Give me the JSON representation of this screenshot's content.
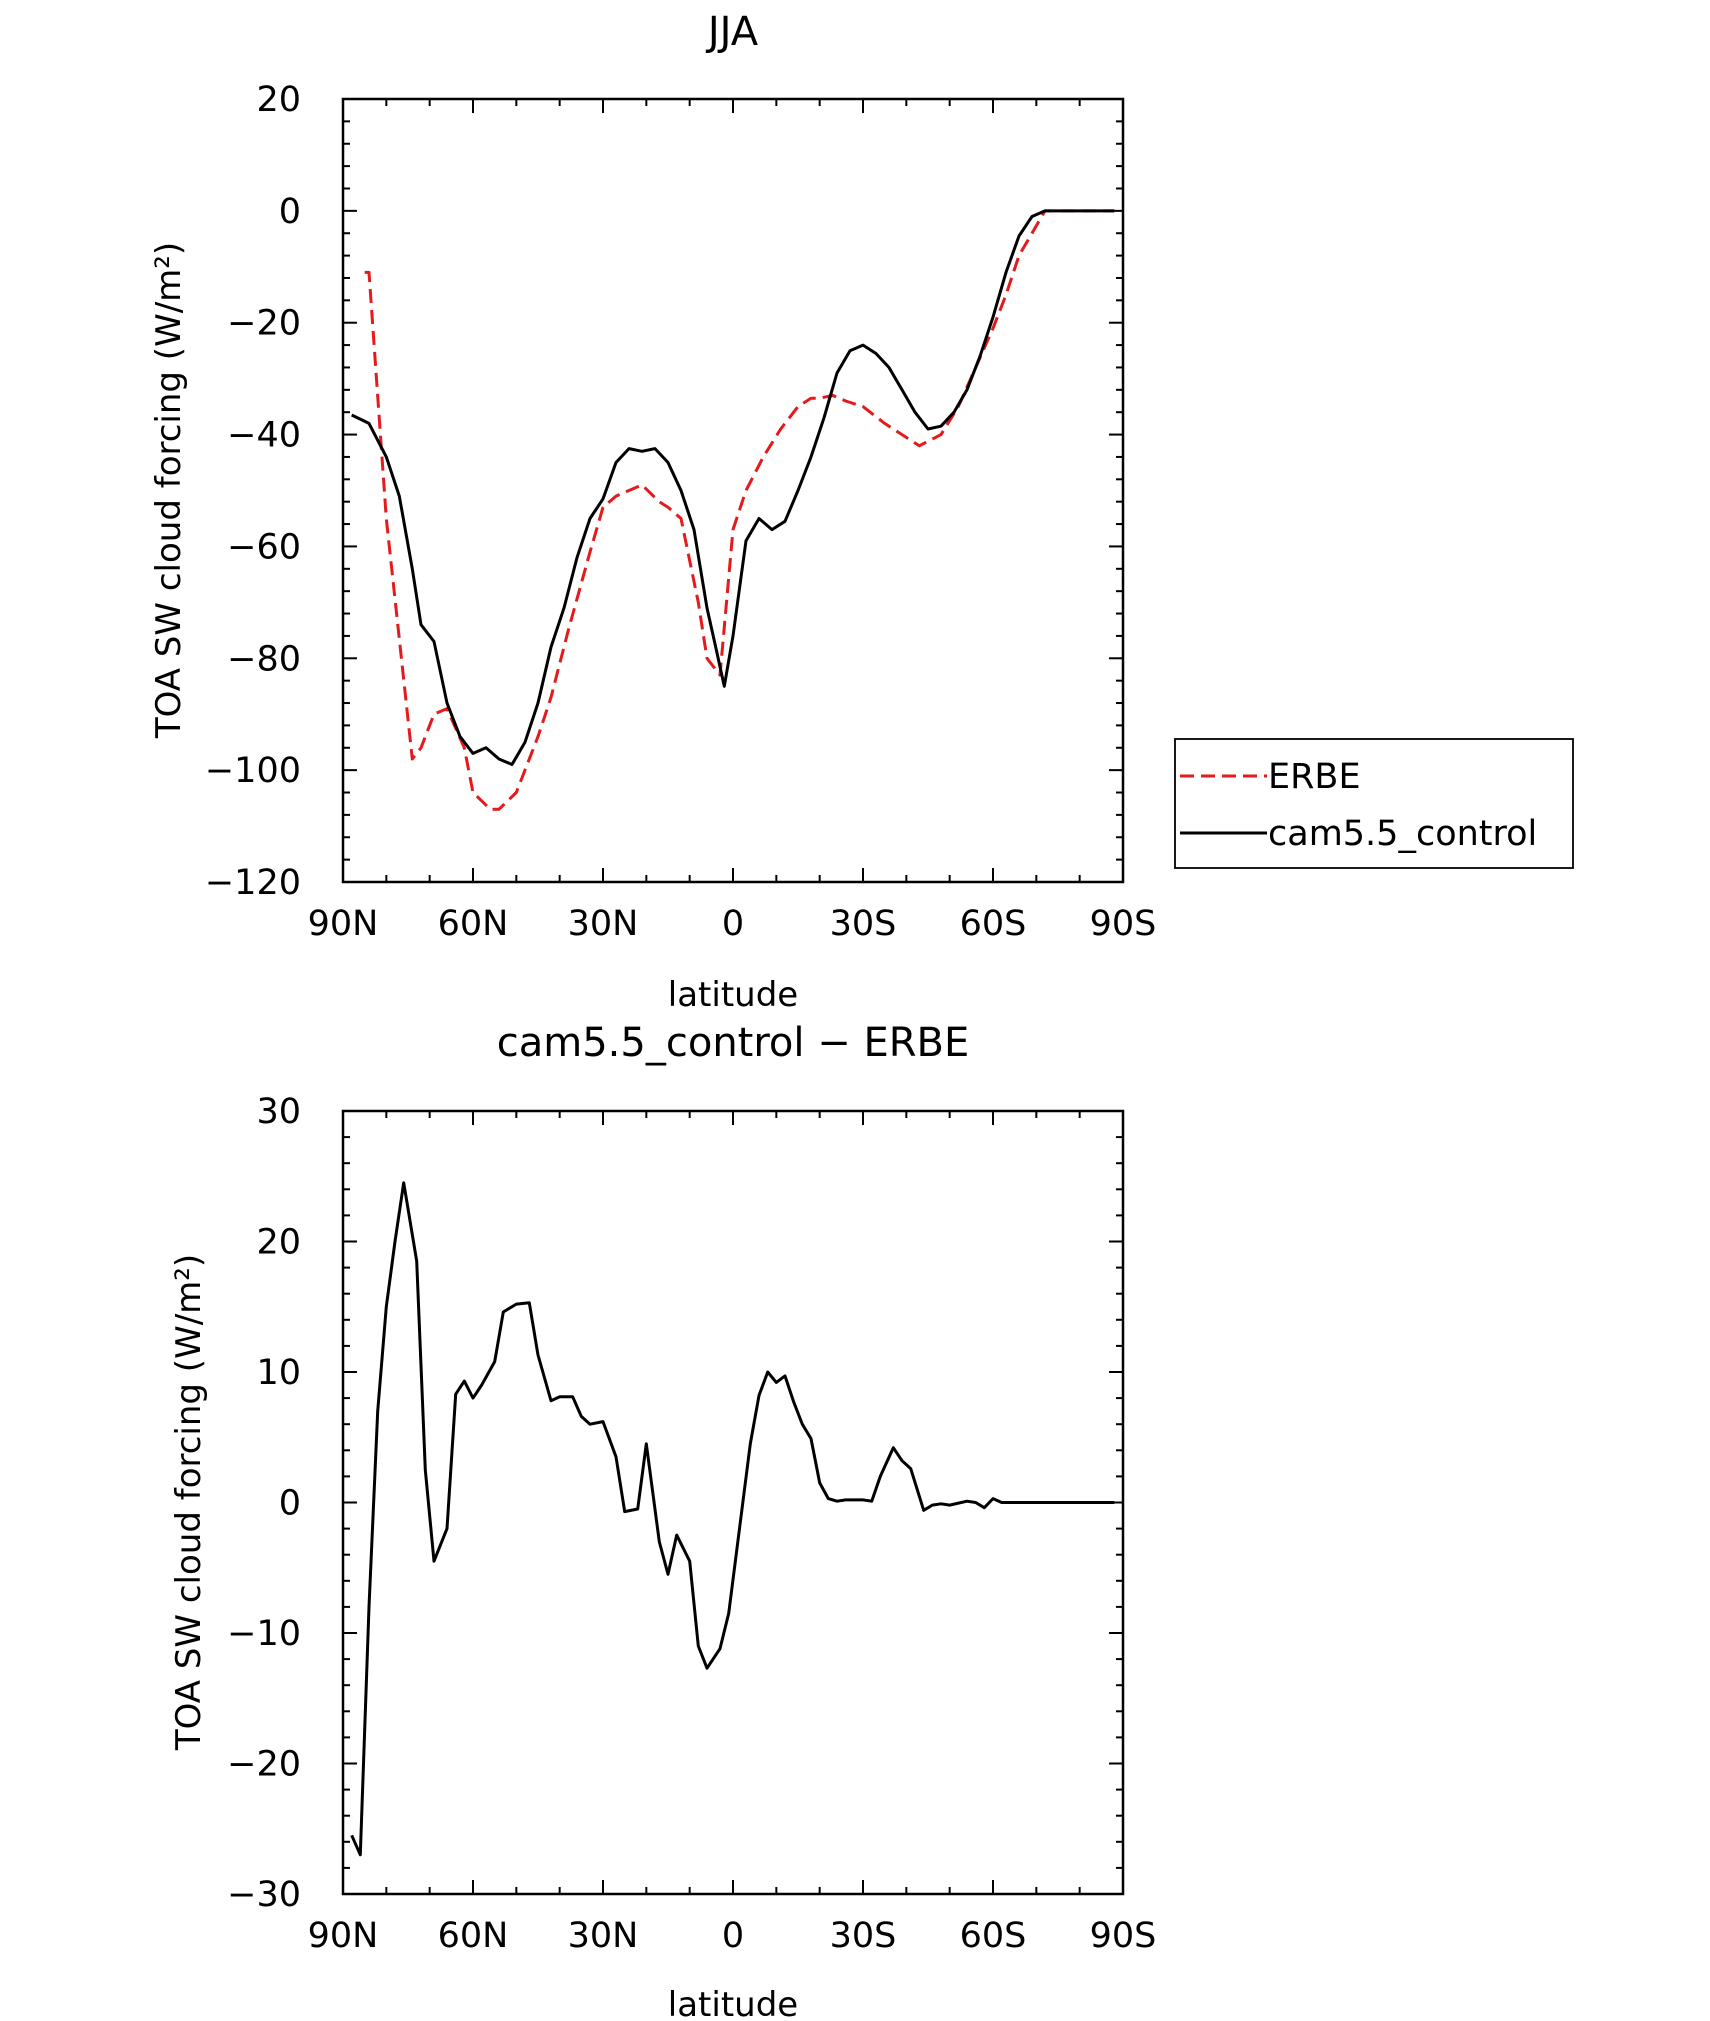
{
  "chart_data": [
    {
      "type": "line",
      "title": "JJA",
      "xlabel": "latitude",
      "ylabel": "TOA SW cloud forcing (W/m²)",
      "xlim": [
        90,
        -90
      ],
      "ylim": [
        -120,
        20
      ],
      "x_ticks": [
        90,
        60,
        30,
        0,
        -30,
        -60,
        -90
      ],
      "x_tick_labels": [
        "90N",
        "60N",
        "30N",
        "0",
        "30S",
        "60S",
        "90S"
      ],
      "y_ticks": [
        20,
        0,
        -20,
        -40,
        -60,
        -80,
        -100,
        -120
      ],
      "y_tick_labels": [
        "20",
        "0",
        "−20",
        "−40",
        "−60",
        "−80",
        "−100",
        "−120"
      ],
      "grid": false,
      "legend": "right",
      "series": [
        {
          "name": "ERBE",
          "color": "#e41a1c",
          "dash": "dashed",
          "x": [
            85,
            84,
            80,
            74,
            72,
            69,
            66,
            62,
            60,
            56,
            54,
            50,
            45,
            42,
            38,
            33,
            30,
            27,
            24,
            21,
            17,
            15,
            12,
            8,
            6,
            3,
            0,
            -3,
            -7,
            -11,
            -15,
            -18,
            -20,
            -23,
            -26,
            -30,
            -35,
            -39,
            -43,
            -48,
            -52,
            -56,
            -60,
            -63,
            -66,
            -69,
            -72,
            -76,
            -80,
            -84,
            -88
          ],
          "y": [
            -11,
            -11,
            -55,
            -98,
            -96,
            -90,
            -89,
            -96,
            -104,
            -107,
            -107,
            -104,
            -94,
            -87,
            -75,
            -61,
            -53,
            -51,
            -50,
            -49,
            -52,
            -53,
            -55,
            -70,
            -80,
            -83,
            -57,
            -50,
            -44,
            -39,
            -35,
            -33.5,
            -33.5,
            -33,
            -34,
            -35,
            -38,
            -40,
            -42,
            -40,
            -35,
            -28,
            -21,
            -15,
            -8,
            -4,
            0,
            0,
            0,
            0,
            0
          ]
        },
        {
          "name": "cam5.5_control",
          "color": "#000000",
          "dash": "solid",
          "x": [
            88,
            84,
            80,
            77,
            74,
            72,
            69,
            66,
            63,
            60,
            57,
            54,
            51,
            48,
            45,
            42,
            39,
            36,
            33,
            30,
            27,
            24,
            21,
            18,
            15,
            12,
            9,
            6,
            4,
            2,
            0,
            -3,
            -6,
            -9,
            -12,
            -15,
            -18,
            -21,
            -24,
            -27,
            -30,
            -33,
            -36,
            -39,
            -42,
            -45,
            -48,
            -51,
            -54,
            -57,
            -60,
            -63,
            -66,
            -69,
            -72,
            -75,
            -80,
            -84,
            -88
          ],
          "y": [
            -36.5,
            -38,
            -44,
            -51,
            -64,
            -74,
            -77,
            -88,
            -94,
            -97,
            -96,
            -98,
            -99,
            -95,
            -88,
            -78,
            -71,
            -62,
            -55,
            -51.5,
            -45,
            -42.5,
            -43,
            -42.5,
            -45,
            -50,
            -57,
            -71,
            -78,
            -85,
            -76,
            -59,
            -55,
            -57,
            -55.5,
            -50,
            -44,
            -37,
            -29,
            -25,
            -24,
            -25.5,
            -28,
            -32,
            -36,
            -39,
            -38.5,
            -36,
            -32,
            -26,
            -19,
            -11,
            -4.5,
            -1,
            0,
            0,
            0,
            0,
            0
          ]
        }
      ]
    },
    {
      "type": "line",
      "title": "cam5.5_control − ERBE",
      "xlabel": "latitude",
      "ylabel": "TOA SW cloud forcing (W/m²)",
      "xlim": [
        90,
        -90
      ],
      "ylim": [
        -30,
        30
      ],
      "x_ticks": [
        90,
        60,
        30,
        0,
        -30,
        -60,
        -90
      ],
      "x_tick_labels": [
        "90N",
        "60N",
        "30N",
        "0",
        "30S",
        "60S",
        "90S"
      ],
      "y_ticks": [
        30,
        20,
        10,
        0,
        -10,
        -20,
        -30
      ],
      "y_tick_labels": [
        "30",
        "20",
        "10",
        "0",
        "−10",
        "−20",
        "−30"
      ],
      "grid": false,
      "series": [
        {
          "color": "#000000",
          "dash": "solid",
          "x": [
            88,
            86,
            84,
            82,
            80,
            78,
            76,
            73,
            71,
            69,
            66,
            64,
            62,
            60,
            58,
            55,
            53,
            50,
            47,
            45,
            42,
            40,
            37,
            35,
            33,
            30,
            27,
            25,
            22,
            20,
            17,
            15,
            13,
            10,
            8,
            6,
            3,
            1,
            -4,
            -6,
            -8,
            -10,
            -12,
            -14,
            -16,
            -18,
            -20,
            -22,
            -24,
            -26,
            -28,
            -30,
            -32,
            -34,
            -37,
            -39,
            -41,
            -44,
            -46,
            -48,
            -50,
            -54,
            -56,
            -58,
            -60,
            -62,
            -64,
            -66,
            -68,
            -70,
            -72,
            -74,
            -76,
            -78,
            -80,
            -82,
            -84,
            -86,
            -88
          ],
          "y": [
            -25.5,
            -27,
            -8,
            7,
            15,
            20,
            24.5,
            18.5,
            2.5,
            -4.5,
            -2,
            8.3,
            9.3,
            8,
            9,
            10.8,
            14.6,
            15.2,
            15.3,
            11.3,
            7.8,
            8.1,
            8.1,
            6.6,
            6,
            6.2,
            3.5,
            -0.7,
            -0.5,
            4.5,
            -3,
            -5.5,
            -2.5,
            -4.5,
            -11,
            -12.7,
            -11.2,
            -8.5,
            4.5,
            8.2,
            10,
            9.2,
            9.7,
            7.7,
            6,
            4.9,
            1.5,
            0.3,
            0.1,
            0.2,
            0.2,
            0.2,
            0.1,
            2,
            4.2,
            3.2,
            2.6,
            -0.6,
            -0.2,
            -0.1,
            -0.2,
            0.1,
            0,
            -0.4,
            0.3,
            0,
            0,
            0,
            0,
            0,
            0,
            0,
            0,
            0,
            0,
            0,
            0,
            0,
            0
          ]
        }
      ]
    }
  ]
}
